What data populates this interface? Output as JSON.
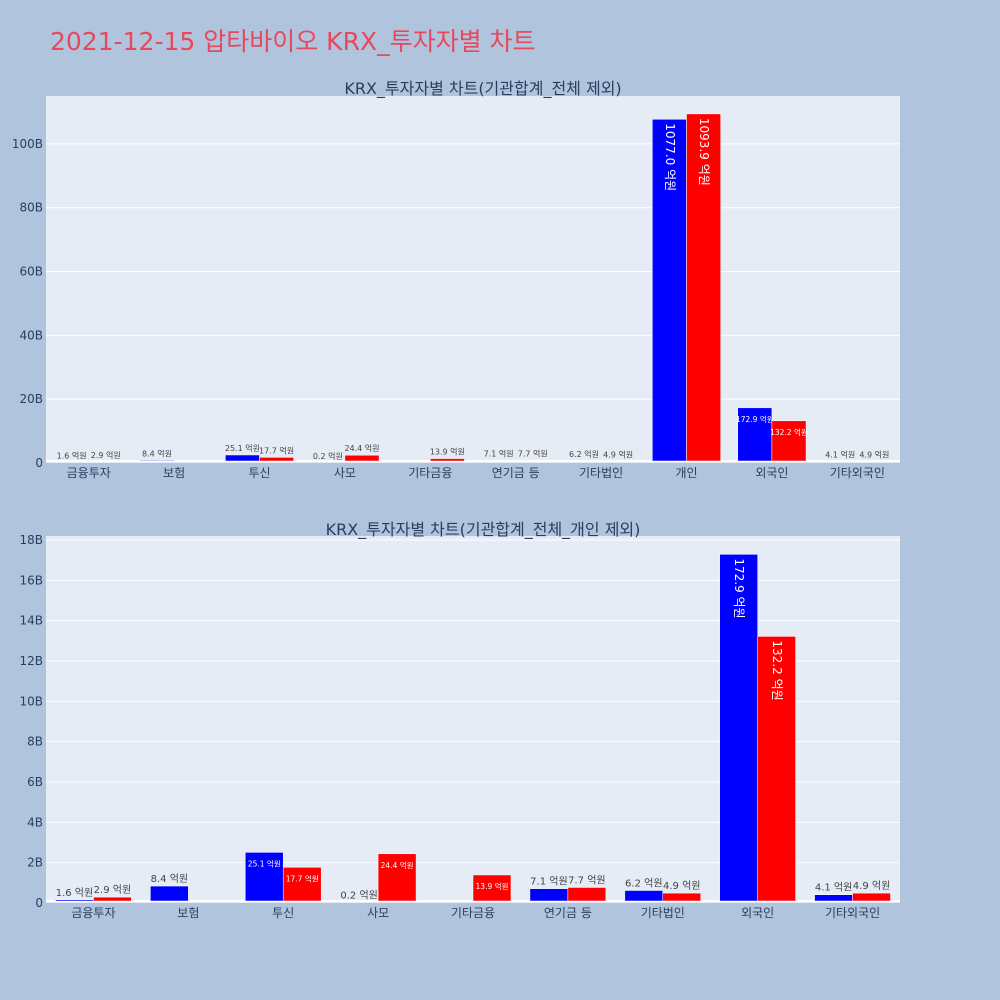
{
  "page": {
    "title": "2021-12-15 압타바이오 KRX_투자자별 차트"
  },
  "colors": {
    "background": "#b0c4de",
    "plot_background": "#e5ecf6",
    "title": "#e8485c",
    "series_blue": "#0000ff",
    "series_red": "#ff0000",
    "gridline": "#ffffff",
    "axis_text": "#2a3f5f"
  },
  "chart_data": [
    {
      "type": "bar",
      "title": "KRX_투자자별 차트(기관합계_전체 제외)",
      "categories": [
        "금융투자",
        "보험",
        "투신",
        "사모",
        "기타금융",
        "연기금 등",
        "기타법인",
        "개인",
        "외국인",
        "기타외국인"
      ],
      "series": [
        {
          "color": "blue",
          "values": [
            0.16,
            0.84,
            2.51,
            0.02,
            0,
            0.71,
            0.62,
            107.7,
            17.29,
            0.41
          ],
          "labels": [
            "1.6 억원",
            "8.4 억원",
            "25.1 억원",
            "0.2 억원",
            "",
            "7.1 억원",
            "6.2 억원",
            "1077.0 억원",
            "172.9 억원",
            "4.1 억원"
          ]
        },
        {
          "color": "red",
          "values": [
            0.29,
            0,
            1.77,
            2.44,
            1.39,
            0.77,
            0.49,
            109.39,
            13.22,
            0.49
          ],
          "labels": [
            "2.9 억원",
            "",
            "17.7 억원",
            "24.4 억원",
            "13.9 억원",
            "7.7 억원",
            "4.9 억원",
            "1093.9 억원",
            "132.2 억원",
            "4.9 억원"
          ]
        }
      ],
      "yticks": [
        0,
        20,
        40,
        60,
        80,
        100
      ],
      "ytick_labels": [
        "0",
        "20B",
        "40B",
        "60B",
        "80B",
        "100B"
      ],
      "ylim": [
        0,
        115
      ],
      "unit": "B",
      "grid": true
    },
    {
      "type": "bar",
      "title": "KRX_투자자별 차트(기관합계_전체_개인 제외)",
      "categories": [
        "금융투자",
        "보험",
        "투신",
        "사모",
        "기타금융",
        "연기금 등",
        "기타법인",
        "외국인",
        "기타외국인"
      ],
      "series": [
        {
          "color": "blue",
          "values": [
            0.16,
            0.84,
            2.51,
            0.02,
            0,
            0.71,
            0.62,
            17.29,
            0.41
          ],
          "labels": [
            "1.6 억원",
            "8.4 억원",
            "25.1 억원",
            "0.2 억원",
            "",
            "7.1 억원",
            "6.2 억원",
            "172.9 억원",
            "4.1 억원"
          ]
        },
        {
          "color": "red",
          "values": [
            0.29,
            0,
            1.77,
            2.44,
            1.39,
            0.77,
            0.49,
            13.22,
            0.49
          ],
          "labels": [
            "2.9 억원",
            "",
            "17.7 억원",
            "24.4 억원",
            "13.9 억원",
            "7.7 억원",
            "4.9 억원",
            "132.2 억원",
            "4.9 억원"
          ]
        }
      ],
      "yticks": [
        0,
        2,
        4,
        6,
        8,
        10,
        12,
        14,
        16,
        18
      ],
      "ytick_labels": [
        "0",
        "2B",
        "4B",
        "6B",
        "8B",
        "10B",
        "12B",
        "14B",
        "16B",
        "18B"
      ],
      "ylim": [
        0,
        18.2
      ],
      "unit": "B",
      "grid": true
    }
  ]
}
